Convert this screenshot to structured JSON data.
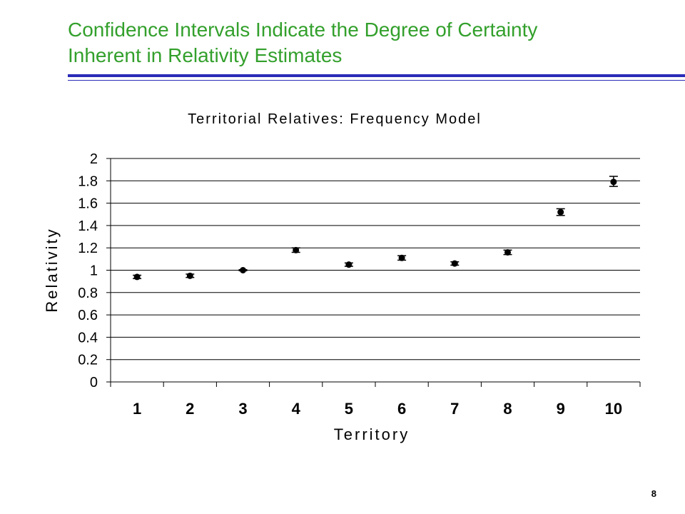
{
  "slide": {
    "title_line1": "Confidence Intervals Indicate the Degree of Certainty",
    "title_line2": "Inherent in Relativity Estimates",
    "page_number": "8",
    "title_color": "#33a02c",
    "rule_color": "#2b2bb8"
  },
  "chart_data": {
    "type": "scatter",
    "title": "Territorial Relatives: Frequency Model",
    "xlabel": "Territory",
    "ylabel": "Relativity",
    "categories": [
      "1",
      "2",
      "3",
      "4",
      "5",
      "6",
      "7",
      "8",
      "9",
      "10"
    ],
    "values": [
      0.94,
      0.95,
      1.0,
      1.18,
      1.05,
      1.11,
      1.06,
      1.16,
      1.52,
      1.79
    ],
    "error_low": [
      0.925,
      0.935,
      0.995,
      1.16,
      1.035,
      1.09,
      1.045,
      1.14,
      1.49,
      1.75
    ],
    "error_high": [
      0.955,
      0.965,
      1.005,
      1.2,
      1.065,
      1.13,
      1.075,
      1.18,
      1.55,
      1.84
    ],
    "ylim": [
      0,
      2
    ],
    "yticks": [
      "0",
      "0.2",
      "0.4",
      "0.6",
      "0.8",
      "1",
      "1.2",
      "1.4",
      "1.6",
      "1.8",
      "2"
    ],
    "grid": "horizontal",
    "legend": "none"
  }
}
